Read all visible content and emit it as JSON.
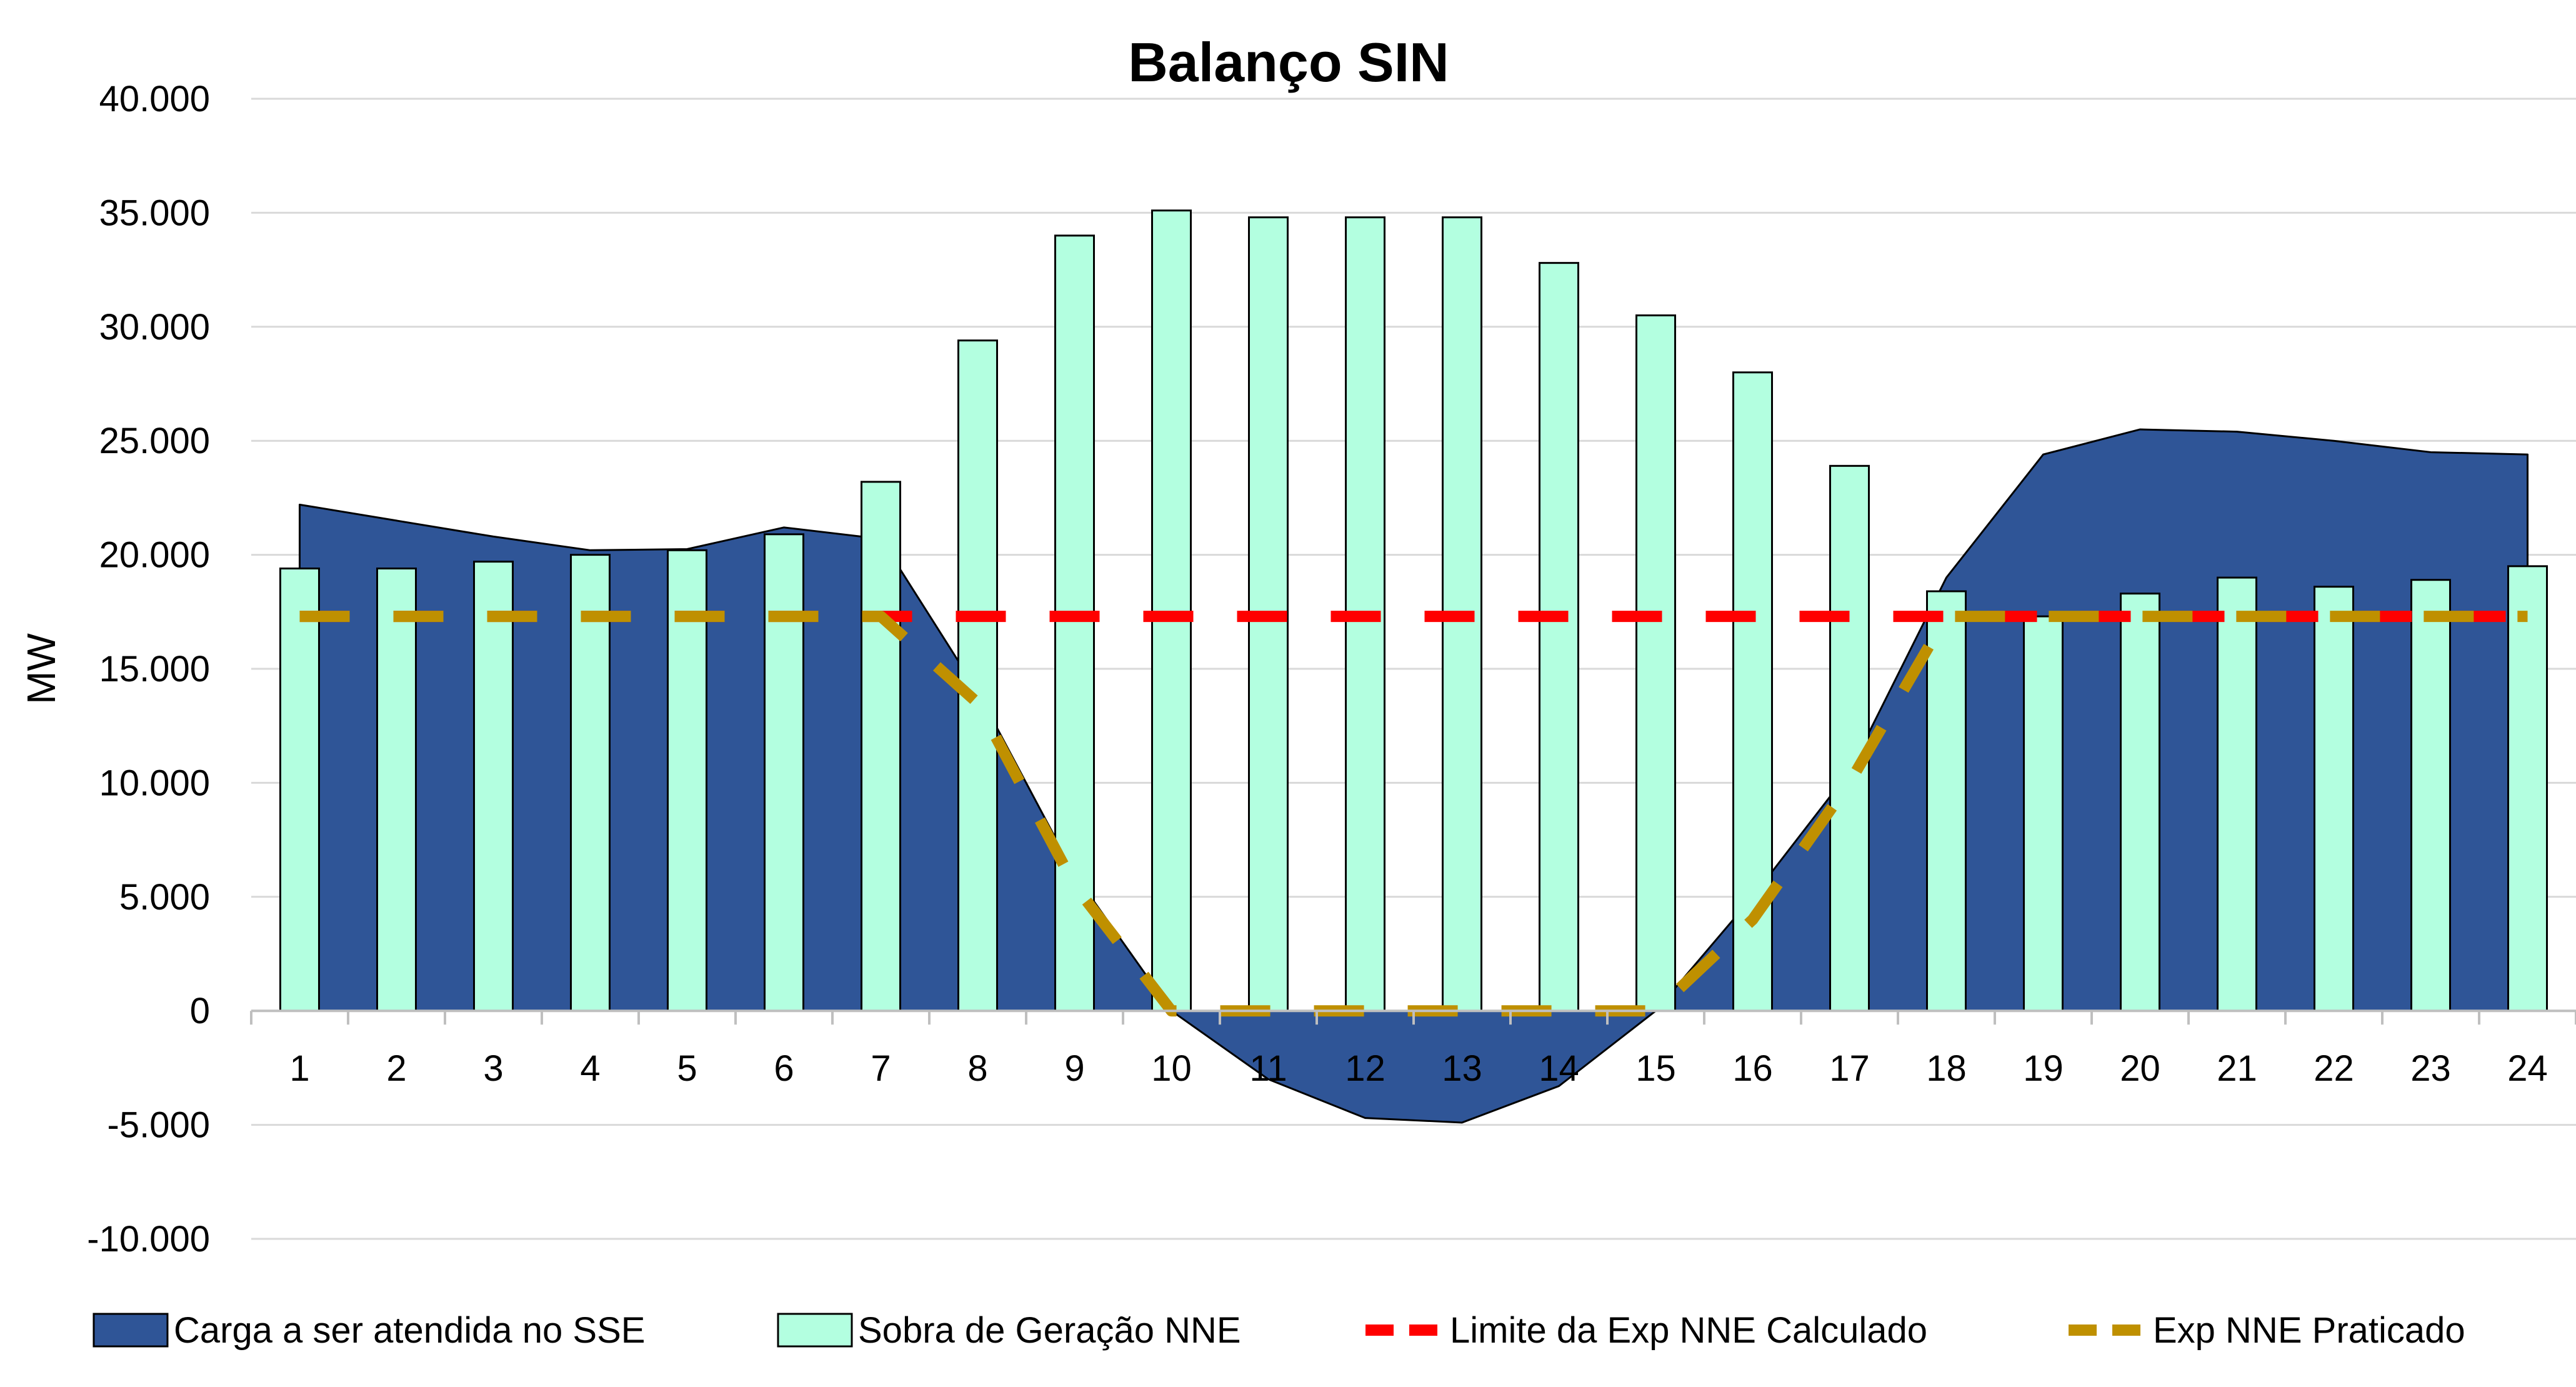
{
  "chart_data": {
    "type": "bar",
    "title": "Balanço SIN",
    "xlabel": "",
    "ylabel": "MW",
    "categories": [
      "1",
      "2",
      "3",
      "4",
      "5",
      "6",
      "7",
      "8",
      "9",
      "10",
      "11",
      "12",
      "13",
      "14",
      "15",
      "16",
      "17",
      "18",
      "19",
      "20",
      "21",
      "22",
      "23",
      "24"
    ],
    "ylim": [
      -10000,
      40000
    ],
    "yticks": [
      -10000,
      -5000,
      0,
      5000,
      10000,
      15000,
      20000,
      25000,
      30000,
      35000,
      40000
    ],
    "ytick_labels": [
      "-10.000",
      "-5.000",
      "0",
      "5.000",
      "10.000",
      "15.000",
      "20.000",
      "25.000",
      "30.000",
      "35.000",
      "40.000"
    ],
    "grid": true,
    "legend_position": "bottom",
    "series": [
      {
        "name": "Carga a ser atendida no SSE",
        "type": "area",
        "color": "#2F5597",
        "values": [
          22200,
          21500,
          20800,
          20200,
          20250,
          21200,
          20700,
          14000,
          6000,
          0,
          -3000,
          -4700,
          -4900,
          -3300,
          0,
          5000,
          10500,
          19000,
          24400,
          25500,
          25400,
          25000,
          24500,
          24400
        ]
      },
      {
        "name": "Sobra de Geração NNE",
        "type": "bar",
        "color": "#B3FFE0",
        "values": [
          19400,
          19400,
          19700,
          20000,
          20200,
          20900,
          23200,
          29400,
          34000,
          35100,
          34800,
          34800,
          34800,
          32800,
          30500,
          28000,
          23900,
          18400,
          17300,
          18300,
          19000,
          18600,
          18900,
          19500
        ]
      },
      {
        "name": "Limite da Exp NNE Calculado",
        "type": "line",
        "color": "#FF0000",
        "values": [
          17300,
          17300,
          17300,
          17300,
          17300,
          17300,
          17300,
          17300,
          17300,
          17300,
          17300,
          17300,
          17300,
          17300,
          17300,
          17300,
          17300,
          17300,
          17300,
          17300,
          17300,
          17300,
          17300,
          17300
        ]
      },
      {
        "name": "Exp NNE Praticado",
        "type": "line",
        "color": "#BF9000",
        "values": [
          17300,
          17300,
          17300,
          17300,
          17300,
          17300,
          17300,
          13500,
          5500,
          0,
          0,
          0,
          0,
          0,
          0,
          4000,
          10000,
          17300,
          17300,
          17300,
          17300,
          17300,
          17300,
          17300
        ]
      }
    ]
  }
}
